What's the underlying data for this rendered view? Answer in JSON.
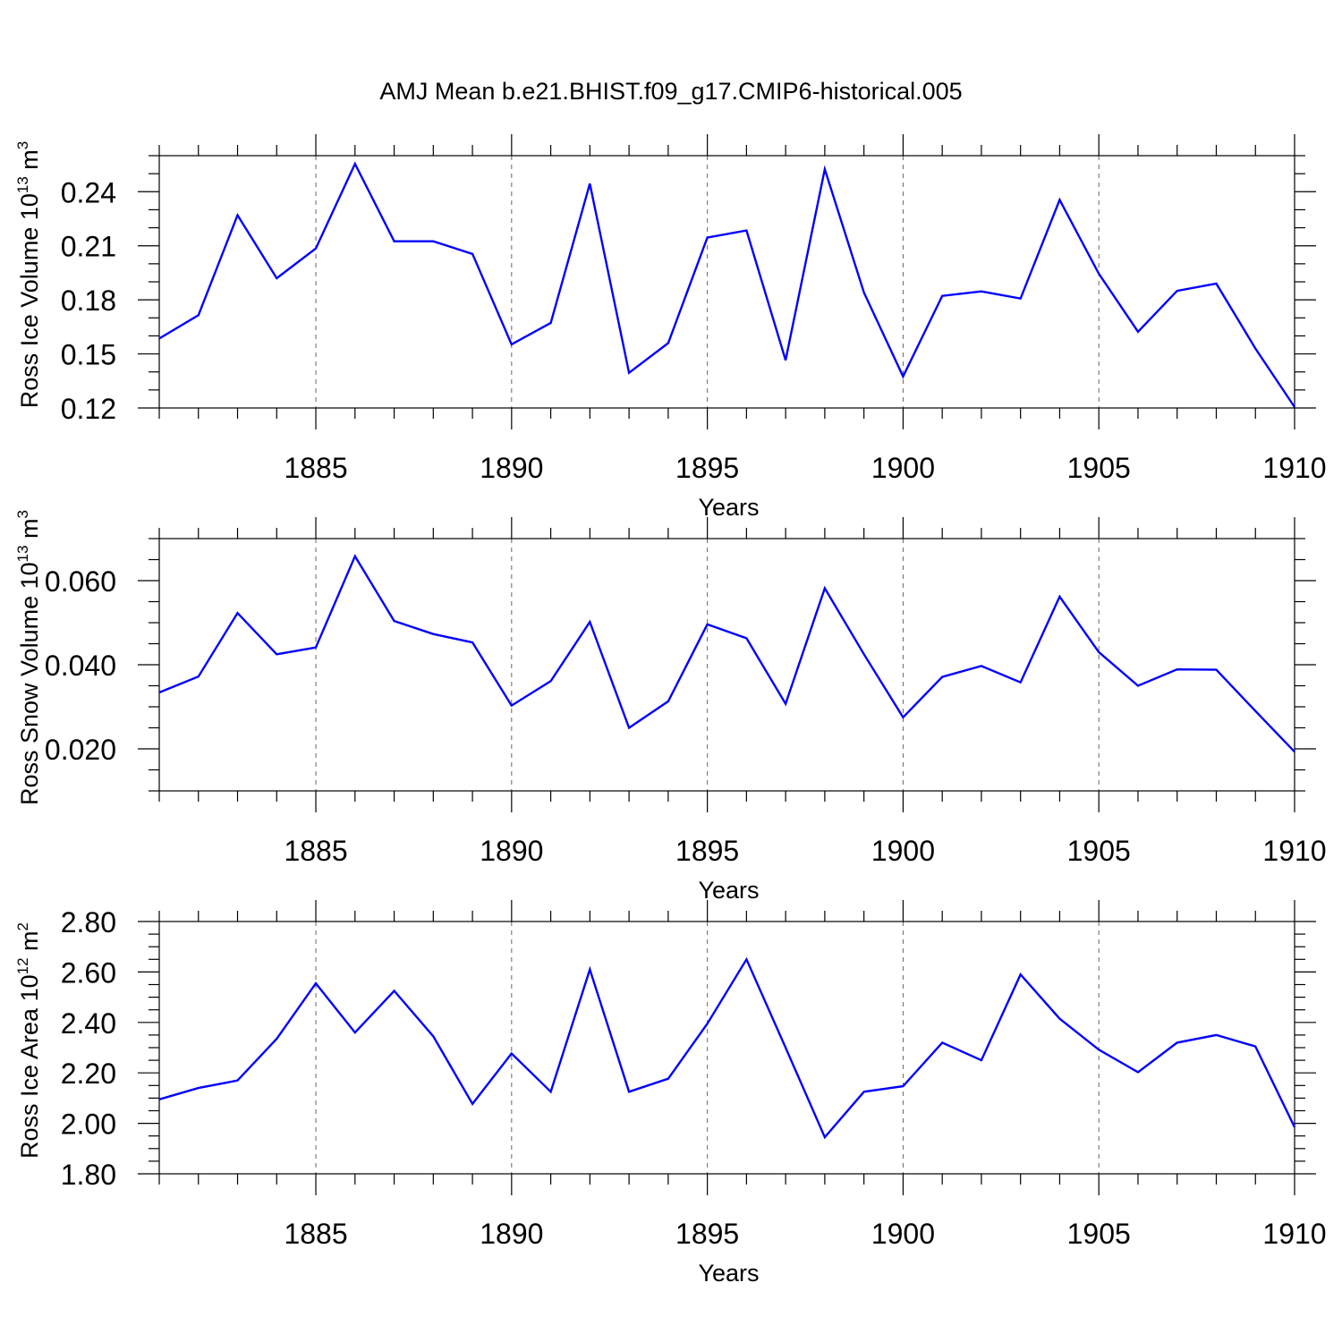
{
  "title": "AMJ Mean b.e21.BHIST.f09_g17.CMIP6-historical.005",
  "colors": {
    "line": "#0000ff",
    "frame": "#000000",
    "grid": "#666666"
  },
  "chart_data": [
    {
      "type": "line",
      "xlabel": "Years",
      "ylabel_main": "Ross Ice Volume 10",
      "ylabel_exp": "13",
      "ylabel_unit": " m",
      "ylabel_unit_exp": "3",
      "xlim": [
        1881,
        1910
      ],
      "ylim": [
        0.12,
        0.26
      ],
      "yticks": [
        0.12,
        0.15,
        0.18,
        0.21,
        0.24
      ],
      "ytick_labels": [
        "0.12",
        "0.15",
        "0.18",
        "0.21",
        "0.24"
      ],
      "yminor_step": 0.01,
      "xticks": [
        1885,
        1890,
        1895,
        1900,
        1905,
        1910
      ],
      "xtick_labels": [
        "1885",
        "1890",
        "1895",
        "1900",
        "1905",
        "1910"
      ],
      "grid": "x-major-dashed",
      "x": [
        1881,
        1882,
        1883,
        1884,
        1885,
        1886,
        1887,
        1888,
        1889,
        1890,
        1891,
        1892,
        1893,
        1894,
        1895,
        1896,
        1897,
        1898,
        1899,
        1900,
        1901,
        1902,
        1903,
        1904,
        1905,
        1906,
        1907,
        1908,
        1909,
        1910
      ],
      "values": [
        0.1585,
        0.1715,
        0.227,
        0.192,
        0.2085,
        0.2555,
        0.2125,
        0.2125,
        0.2055,
        0.1553,
        0.1672,
        0.2445,
        0.1395,
        0.156,
        0.2145,
        0.2185,
        0.1465,
        0.2525,
        0.184,
        0.1375,
        0.1822,
        0.1847,
        0.1807,
        0.2355,
        0.1945,
        0.1623,
        0.185,
        0.189,
        0.153,
        0.1205
      ]
    },
    {
      "type": "line",
      "xlabel": "Years",
      "ylabel_main": "Ross Snow Volume 10",
      "ylabel_exp": "13",
      "ylabel_unit": " m",
      "ylabel_unit_exp": "3",
      "xlim": [
        1881,
        1910
      ],
      "ylim": [
        0.01,
        0.07
      ],
      "yticks": [
        0.02,
        0.04,
        0.06
      ],
      "ytick_labels": [
        "0.020",
        "0.040",
        "0.060"
      ],
      "yminor_step": 0.005,
      "xticks": [
        1885,
        1890,
        1895,
        1900,
        1905,
        1910
      ],
      "xtick_labels": [
        "1885",
        "1890",
        "1895",
        "1900",
        "1905",
        "1910"
      ],
      "grid": "x-major-dashed",
      "x": [
        1881,
        1882,
        1883,
        1884,
        1885,
        1886,
        1887,
        1888,
        1889,
        1890,
        1891,
        1892,
        1893,
        1894,
        1895,
        1896,
        1897,
        1898,
        1899,
        1900,
        1901,
        1902,
        1903,
        1904,
        1905,
        1906,
        1907,
        1908,
        1909,
        1910
      ],
      "values": [
        0.0334,
        0.0372,
        0.0523,
        0.0425,
        0.0441,
        0.0658,
        0.0504,
        0.0473,
        0.0453,
        0.0303,
        0.0361,
        0.0502,
        0.025,
        0.0313,
        0.0496,
        0.0463,
        0.0307,
        0.0582,
        0.0425,
        0.0275,
        0.0371,
        0.0397,
        0.0358,
        0.0562,
        0.043,
        0.035,
        0.0389,
        0.0388,
        0.029,
        0.0193
      ]
    },
    {
      "type": "line",
      "xlabel": "Years",
      "ylabel_main": "Ross Ice Area 10",
      "ylabel_exp": "12",
      "ylabel_unit": " m",
      "ylabel_unit_exp": "2",
      "xlim": [
        1881,
        1910
      ],
      "ylim": [
        1.8,
        2.8
      ],
      "yticks": [
        1.8,
        2.0,
        2.2,
        2.4,
        2.6,
        2.8
      ],
      "ytick_labels": [
        "1.80",
        "2.00",
        "2.20",
        "2.40",
        "2.60",
        "2.80"
      ],
      "yminor_step": 0.05,
      "xticks": [
        1885,
        1890,
        1895,
        1900,
        1905,
        1910
      ],
      "xtick_labels": [
        "1885",
        "1890",
        "1895",
        "1900",
        "1905",
        "1910"
      ],
      "grid": "x-major-dashed",
      "x": [
        1881,
        1882,
        1883,
        1884,
        1885,
        1886,
        1887,
        1888,
        1889,
        1890,
        1891,
        1892,
        1893,
        1894,
        1895,
        1896,
        1897,
        1898,
        1899,
        1900,
        1901,
        1902,
        1903,
        1904,
        1905,
        1906,
        1907,
        1908,
        1909,
        1910
      ],
      "values": [
        2.095,
        2.14,
        2.17,
        2.335,
        2.555,
        2.36,
        2.525,
        2.345,
        2.077,
        2.277,
        2.125,
        2.61,
        2.125,
        2.177,
        2.395,
        2.65,
        2.3,
        1.945,
        2.125,
        2.147,
        2.32,
        2.25,
        2.59,
        2.415,
        2.292,
        2.203,
        2.32,
        2.35,
        2.305,
        1.985
      ]
    }
  ]
}
